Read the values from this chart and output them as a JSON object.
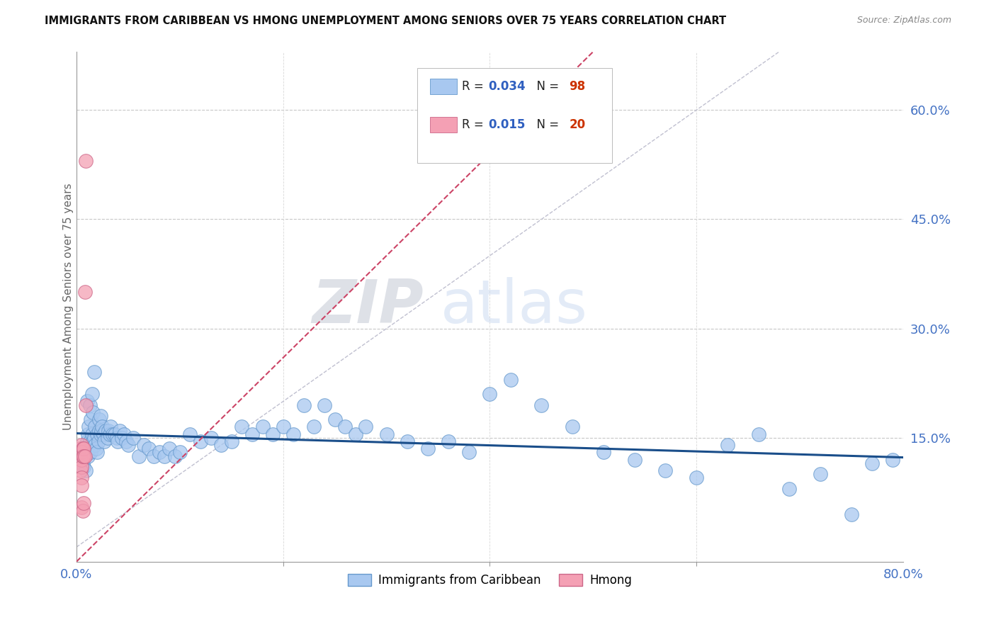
{
  "title": "IMMIGRANTS FROM CARIBBEAN VS HMONG UNEMPLOYMENT AMONG SENIORS OVER 75 YEARS CORRELATION CHART",
  "source": "Source: ZipAtlas.com",
  "ylabel": "Unemployment Among Seniors over 75 years",
  "xlim": [
    0.0,
    0.8
  ],
  "ylim": [
    -0.02,
    0.68
  ],
  "ytick_positions": [
    0.15,
    0.3,
    0.45,
    0.6
  ],
  "ytick_labels": [
    "15.0%",
    "30.0%",
    "45.0%",
    "60.0%"
  ],
  "caribbean_color": "#A8C8F0",
  "hmong_color": "#F4A0B4",
  "caribbean_edge": "#6699CC",
  "hmong_edge": "#CC6688",
  "trendline_caribbean_color": "#1A4E8A",
  "trendline_hmong_color": "#CC4466",
  "diagonal_color": "#C0C0D0",
  "watermark_zip": "ZIP",
  "watermark_atlas": "atlas",
  "r_caribbean": "0.034",
  "n_caribbean": "98",
  "r_hmong": "0.015",
  "n_hmong": "20",
  "caribbean_x": [
    0.005,
    0.006,
    0.007,
    0.008,
    0.009,
    0.01,
    0.01,
    0.01,
    0.011,
    0.011,
    0.012,
    0.012,
    0.013,
    0.013,
    0.014,
    0.014,
    0.015,
    0.015,
    0.016,
    0.016,
    0.017,
    0.017,
    0.018,
    0.018,
    0.019,
    0.02,
    0.02,
    0.021,
    0.022,
    0.022,
    0.023,
    0.023,
    0.024,
    0.025,
    0.026,
    0.027,
    0.028,
    0.03,
    0.031,
    0.032,
    0.033,
    0.035,
    0.037,
    0.039,
    0.04,
    0.042,
    0.044,
    0.046,
    0.048,
    0.05,
    0.055,
    0.06,
    0.065,
    0.07,
    0.075,
    0.08,
    0.085,
    0.09,
    0.095,
    0.1,
    0.11,
    0.12,
    0.13,
    0.14,
    0.15,
    0.16,
    0.17,
    0.18,
    0.19,
    0.2,
    0.21,
    0.22,
    0.23,
    0.24,
    0.25,
    0.26,
    0.27,
    0.28,
    0.3,
    0.32,
    0.34,
    0.36,
    0.38,
    0.4,
    0.42,
    0.45,
    0.48,
    0.51,
    0.54,
    0.57,
    0.6,
    0.63,
    0.66,
    0.69,
    0.72,
    0.75,
    0.77,
    0.79
  ],
  "caribbean_y": [
    0.135,
    0.115,
    0.11,
    0.125,
    0.105,
    0.13,
    0.145,
    0.2,
    0.125,
    0.155,
    0.14,
    0.165,
    0.145,
    0.195,
    0.13,
    0.175,
    0.155,
    0.21,
    0.145,
    0.185,
    0.15,
    0.24,
    0.14,
    0.165,
    0.135,
    0.13,
    0.155,
    0.145,
    0.16,
    0.175,
    0.155,
    0.18,
    0.16,
    0.165,
    0.155,
    0.145,
    0.16,
    0.15,
    0.16,
    0.155,
    0.165,
    0.155,
    0.155,
    0.15,
    0.145,
    0.16,
    0.15,
    0.155,
    0.145,
    0.14,
    0.15,
    0.125,
    0.14,
    0.135,
    0.125,
    0.13,
    0.125,
    0.135,
    0.125,
    0.13,
    0.155,
    0.145,
    0.15,
    0.14,
    0.145,
    0.165,
    0.155,
    0.165,
    0.155,
    0.165,
    0.155,
    0.195,
    0.165,
    0.195,
    0.175,
    0.165,
    0.155,
    0.165,
    0.155,
    0.145,
    0.135,
    0.145,
    0.13,
    0.21,
    0.23,
    0.195,
    0.165,
    0.13,
    0.12,
    0.105,
    0.095,
    0.14,
    0.155,
    0.08,
    0.1,
    0.045,
    0.115,
    0.12
  ],
  "hmong_x": [
    0.003,
    0.004,
    0.004,
    0.005,
    0.005,
    0.005,
    0.005,
    0.005,
    0.005,
    0.005,
    0.006,
    0.006,
    0.006,
    0.007,
    0.007,
    0.007,
    0.008,
    0.008,
    0.009,
    0.009
  ],
  "hmong_y": [
    0.135,
    0.12,
    0.105,
    0.14,
    0.13,
    0.12,
    0.11,
    0.095,
    0.085,
    0.055,
    0.135,
    0.125,
    0.05,
    0.135,
    0.125,
    0.06,
    0.35,
    0.125,
    0.195,
    0.53
  ]
}
